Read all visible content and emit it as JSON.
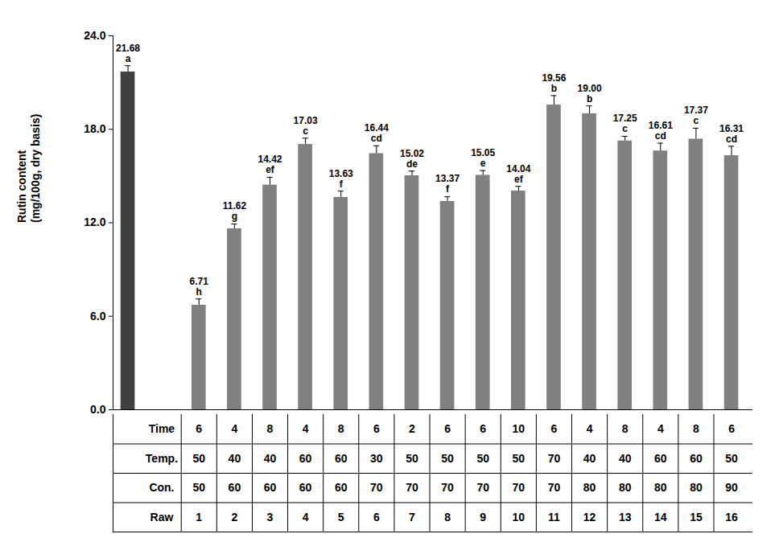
{
  "chart_data": {
    "type": "bar",
    "ylabel": "Rutin content\n(mg/100g, dry basis)",
    "categories": [
      "Raw",
      "1",
      "2",
      "3",
      "4",
      "5",
      "6",
      "7",
      "8",
      "9",
      "10",
      "11",
      "12",
      "13",
      "14",
      "15",
      "16"
    ],
    "values": [
      21.68,
      6.71,
      11.62,
      14.42,
      17.03,
      13.63,
      16.44,
      15.02,
      13.37,
      15.05,
      14.04,
      19.56,
      19.0,
      17.25,
      16.61,
      17.37,
      16.31
    ],
    "value_labels": [
      "21.68",
      "6.71",
      "11.62",
      "14.42",
      "17.03",
      "13.63",
      "16.44",
      "15.02",
      "13.37",
      "15.05",
      "14.04",
      "19.56",
      "19.00",
      "17.25",
      "16.61",
      "17.37",
      "16.31"
    ],
    "errors": [
      0.4,
      0.4,
      0.3,
      0.5,
      0.4,
      0.4,
      0.5,
      0.3,
      0.3,
      0.3,
      0.3,
      0.6,
      0.5,
      0.3,
      0.5,
      0.7,
      0.6
    ],
    "significance": [
      "a",
      "h",
      "g",
      "ef",
      "c",
      "f",
      "cd",
      "de",
      "f",
      "e",
      "ef",
      "b",
      "b",
      "c",
      "cd",
      "c",
      "cd"
    ],
    "colors": [
      "#404040",
      "#808080",
      "#808080",
      "#808080",
      "#808080",
      "#808080",
      "#808080",
      "#808080",
      "#808080",
      "#808080",
      "#808080",
      "#808080",
      "#808080",
      "#808080",
      "#808080",
      "#808080",
      "#808080"
    ],
    "ylim": [
      0,
      24
    ],
    "yticks": [
      {
        "value": 0,
        "label": "0.0"
      },
      {
        "value": 6,
        "label": "6.0"
      },
      {
        "value": 12,
        "label": "12.0"
      },
      {
        "value": 18,
        "label": "18.0"
      },
      {
        "value": 24,
        "label": "24.0"
      }
    ],
    "grid": false,
    "data_labels": true,
    "tick_labels": "y",
    "table": {
      "rows": [
        {
          "label": "Time",
          "values": [
            6,
            4,
            8,
            4,
            8,
            6,
            2,
            6,
            6,
            10,
            6,
            4,
            8,
            4,
            8,
            6
          ]
        },
        {
          "label": "Temp.",
          "values": [
            50,
            40,
            40,
            60,
            60,
            30,
            50,
            50,
            50,
            50,
            70,
            40,
            40,
            60,
            60,
            50
          ]
        },
        {
          "label": "Con.",
          "values": [
            50,
            60,
            60,
            60,
            60,
            70,
            70,
            70,
            70,
            70,
            70,
            80,
            80,
            80,
            80,
            90
          ]
        }
      ]
    }
  }
}
